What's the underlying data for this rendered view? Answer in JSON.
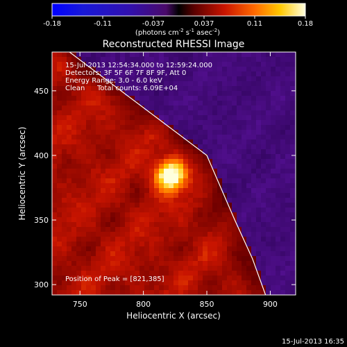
{
  "chart_data": {
    "type": "heatmap",
    "title": "Reconstructed RHESSI Image",
    "xlabel": "Heliocentric X (arcsec)",
    "ylabel": "Heliocentric Y (arcsec)",
    "x_ticks": [
      750,
      800,
      850,
      900
    ],
    "y_ticks": [
      300,
      350,
      400,
      450
    ],
    "xlim": [
      728,
      920
    ],
    "ylim": [
      292,
      480
    ],
    "colorbar": {
      "ticks": [
        "-0.18",
        "-0.11",
        "-0.037",
        "0.037",
        "0.11",
        "0.18"
      ],
      "unit_base": "(photons cm",
      "unit_exp1": "-2",
      "unit_mid": " s",
      "unit_exp2": "-1",
      "unit_tail": " asec",
      "unit_exp3": "-2",
      "unit_end": ")",
      "min": -0.18,
      "max": 0.18
    },
    "annotations": {
      "time_range": "15-Jul-2013 12:54:34.000 to 12:59:24.000",
      "detectors": "Detectors: 3F 5F 6F 7F 8F 9F, Att 0",
      "energy": "Energy Range: 3.0 - 6.0 keV",
      "clean": "Clean",
      "total_counts": "Total counts: 6.09E+04",
      "peak": "Position of Peak = [821,385]"
    },
    "peak": {
      "x": 821,
      "y": 385
    },
    "limb_curve": [
      [
        735,
        485
      ],
      [
        850,
        400
      ],
      [
        872,
        350
      ],
      [
        886,
        320
      ],
      [
        897,
        290
      ]
    ],
    "footer_timestamp": "15-Jul-2013 16:35",
    "colors": {
      "background": "#000000",
      "limb": "#ffffff"
    }
  }
}
